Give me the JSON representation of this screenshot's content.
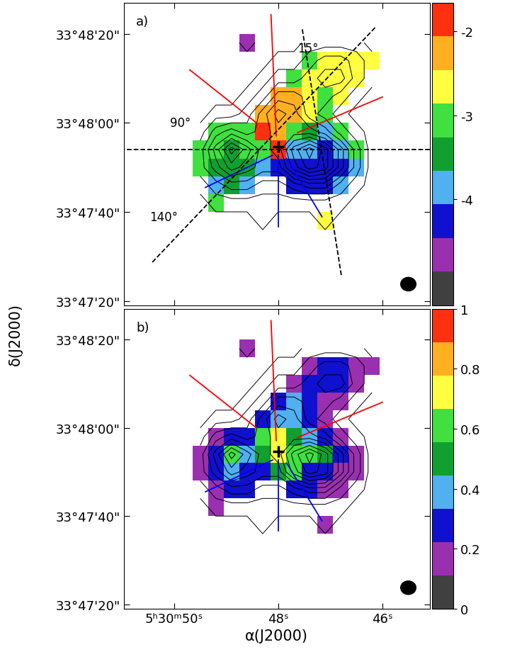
{
  "figure": {
    "ylabel": "δ(J2000)"
  },
  "chart_data": [
    {
      "type": "heatmap",
      "title": "a)",
      "tick_labels": "y",
      "x": [
        49.5,
        49.2,
        48.9,
        48.6,
        48.3,
        48.0,
        47.7,
        47.4,
        47.1,
        46.8,
        46.5,
        46.2
      ],
      "y": [
        34,
        38,
        42,
        46,
        50,
        54,
        58,
        62,
        66,
        70,
        74,
        78
      ],
      "xlim": [
        50.97,
        45.09
      ],
      "xticks": [
        {
          "value": 50,
          "label": "5ʰ30ᵐ50ˢ"
        },
        {
          "value": 48,
          "label": "48ˢ"
        },
        {
          "value": 46,
          "label": "46ˢ"
        }
      ],
      "ylim": [
        19,
        87
      ],
      "yticks": [
        {
          "value": 80,
          "label": "33°48'20\""
        },
        {
          "value": 60,
          "label": "33°48'00\""
        },
        {
          "value": 40,
          "label": "33°47'40\""
        },
        {
          "value": 20,
          "label": "33°47'20\""
        }
      ],
      "colors": [
        "#404040",
        "#9a30b0",
        "#1010d0",
        "#50b0f0",
        "#10a030",
        "#40e040",
        "#ffff40",
        "#ffb020",
        "#ff3010"
      ],
      "colorbar": {
        "range": [
          -5.26,
          -1.66
        ],
        "ticks": [
          -2,
          -3,
          -4
        ]
      },
      "cells": [
        [
          null,
          null,
          null,
          null,
          null,
          null,
          null,
          null,
          null,
          null,
          null,
          null
        ],
        [
          null,
          null,
          null,
          null,
          null,
          null,
          null,
          null,
          -2.6,
          null,
          null,
          null
        ],
        [
          null,
          -3.0,
          null,
          null,
          null,
          null,
          null,
          null,
          null,
          null,
          null,
          null
        ],
        [
          null,
          -3.8,
          -3.6,
          -3.8,
          null,
          null,
          -4.2,
          -4.2,
          -4.2,
          -3.8,
          null,
          null
        ],
        [
          -3.0,
          -3.4,
          -3.4,
          -3.6,
          -3.8,
          -4.2,
          -4.2,
          -4.2,
          -4.2,
          -4.2,
          -3.8,
          null
        ],
        [
          -3.0,
          -3.0,
          -3.4,
          -3.0,
          -3.0,
          -1.9,
          -3.8,
          -3.8,
          -4.2,
          -3.8,
          -3.0,
          null
        ],
        [
          null,
          -3.0,
          -3.0,
          -3.0,
          -1.9,
          -2.3,
          -3.0,
          -3.4,
          -3.8,
          -3.0,
          null,
          null
        ],
        [
          null,
          null,
          null,
          null,
          -2.3,
          -2.3,
          -2.3,
          -2.6,
          -3.0,
          null,
          null,
          null
        ],
        [
          null,
          null,
          null,
          null,
          null,
          -2.3,
          -2.3,
          -2.6,
          -3.0,
          -2.6,
          null,
          null
        ],
        [
          null,
          null,
          null,
          null,
          null,
          null,
          -3.0,
          -2.6,
          -2.6,
          -2.6,
          -2.6,
          null
        ],
        [
          null,
          null,
          null,
          null,
          null,
          null,
          null,
          -3.0,
          -2.6,
          -2.6,
          -2.6,
          -2.6
        ],
        [
          null,
          null,
          null,
          -4.6,
          null,
          null,
          null,
          null,
          null,
          null,
          null,
          null
        ]
      ],
      "intensity": [
        [
          0,
          0,
          0,
          0,
          0,
          0,
          0,
          0,
          0,
          0,
          0,
          0
        ],
        [
          0,
          0,
          0,
          0,
          1,
          0,
          0,
          0,
          1,
          0,
          0,
          0
        ],
        [
          0,
          1,
          1,
          1,
          1,
          1,
          1,
          1,
          1,
          1,
          0,
          0
        ],
        [
          1,
          2,
          3,
          3,
          2,
          2,
          3,
          4,
          4,
          2,
          1,
          0
        ],
        [
          2,
          4,
          6,
          5,
          4,
          4,
          7,
          9,
          8,
          5,
          2,
          0
        ],
        [
          2,
          5,
          8,
          6,
          4,
          5,
          8,
          10,
          8,
          5,
          2,
          0
        ],
        [
          1,
          3,
          4,
          3,
          4,
          5,
          5,
          5,
          4,
          2,
          1,
          0
        ],
        [
          0,
          1,
          1,
          2,
          4,
          6,
          5,
          3,
          2,
          1,
          0,
          0
        ],
        [
          0,
          0,
          0,
          1,
          2,
          4,
          4,
          3,
          3,
          2,
          1,
          0
        ],
        [
          0,
          0,
          0,
          0,
          1,
          2,
          2,
          3,
          4,
          4,
          2,
          1
        ],
        [
          0,
          0,
          0,
          0,
          0,
          1,
          1,
          2,
          3,
          3,
          2,
          1
        ],
        [
          0,
          0,
          0,
          1,
          0,
          0,
          0,
          1,
          1,
          1,
          1,
          0
        ]
      ],
      "contour_levels": [
        0.5,
        1.5,
        2.5,
        3.5,
        4.5,
        5.5,
        6.5,
        7.5,
        8.5,
        9.5
      ],
      "lines": [
        {
          "color": "red",
          "line_style": "solid",
          "points": [
            [
              49.7,
              71.9
            ],
            [
              48.42,
              60.0
            ]
          ]
        },
        {
          "color": "red",
          "line_style": "solid",
          "points": [
            [
              48.14,
              84.3
            ],
            [
              48.04,
              57.1
            ]
          ]
        },
        {
          "color": "red",
          "line_style": "solid",
          "points": [
            [
              46.0,
              65.8
            ],
            [
              47.63,
              57.8
            ]
          ]
        },
        {
          "color": "blue",
          "line_style": "solid",
          "points": [
            [
              49.4,
              45.5
            ],
            [
              48.11,
              52.7
            ]
          ]
        },
        {
          "color": "blue",
          "line_style": "solid",
          "points": [
            [
              48.0,
              52.7
            ],
            [
              48.0,
              36.7
            ]
          ]
        },
        {
          "color": "blue",
          "line_style": "solid",
          "points": [
            [
              47.16,
              38.9
            ],
            [
              47.84,
              52.0
            ]
          ]
        },
        {
          "color": "black",
          "line_style": "dashed",
          "points": [
            [
              51.17,
              54.0
            ],
            [
              45.09,
              54.0
            ]
          ]
        },
        {
          "color": "black",
          "line_style": "dashed",
          "points": [
            [
              46.79,
              25.8
            ],
            [
              47.54,
              81.1
            ]
          ]
        },
        {
          "color": "black",
          "line_style": "dashed",
          "points": [
            [
              50.42,
              28.7
            ],
            [
              46.14,
              81.4
            ]
          ]
        }
      ],
      "markers": [
        {
          "x": 48.0,
          "y": 54.6,
          "marker": "plus"
        }
      ],
      "annotations": [
        {
          "text": "15°",
          "x": 47.43,
          "y": 76.7
        },
        {
          "text": "90°",
          "x": 49.88,
          "y": 60.0
        },
        {
          "text": "140°",
          "x": 50.2,
          "y": 38.9
        }
      ]
    },
    {
      "type": "heatmap",
      "title": "b)",
      "xlabel": "α(J2000)",
      "x": [
        49.5,
        49.2,
        48.9,
        48.6,
        48.3,
        48.0,
        47.7,
        47.4,
        47.1,
        46.8,
        46.5,
        46.2
      ],
      "y": [
        34,
        38,
        42,
        46,
        50,
        54,
        58,
        62,
        66,
        70,
        74,
        78
      ],
      "xlim": [
        50.97,
        45.09
      ],
      "xticks": [
        {
          "value": 50,
          "label": "5ʰ30ᵐ50ˢ"
        },
        {
          "value": 48,
          "label": "48ˢ"
        },
        {
          "value": 46,
          "label": "46ˢ"
        }
      ],
      "ylim": [
        19,
        87
      ],
      "yticks": [
        {
          "value": 80,
          "label": "33°48'20\""
        },
        {
          "value": 60,
          "label": "33°48'00\""
        },
        {
          "value": 40,
          "label": "33°47'40\""
        },
        {
          "value": 20,
          "label": "33°47'20\""
        }
      ],
      "colors": [
        "#404040",
        "#9a30b0",
        "#1010d0",
        "#50b0f0",
        "#10a030",
        "#40e040",
        "#ffff40",
        "#ffb020",
        "#ff3010"
      ],
      "colorbar": {
        "range": [
          0,
          1
        ],
        "ticks": [
          1,
          0.8,
          0.6,
          0.4,
          0.2,
          0
        ]
      },
      "cells": [
        [
          null,
          null,
          null,
          null,
          null,
          null,
          null,
          null,
          null,
          null,
          null,
          null
        ],
        [
          null,
          null,
          null,
          null,
          null,
          null,
          null,
          null,
          0.15,
          null,
          null,
          null
        ],
        [
          null,
          0.15,
          null,
          null,
          null,
          null,
          null,
          null,
          null,
          null,
          null,
          null
        ],
        [
          null,
          0.15,
          0.3,
          0.3,
          null,
          null,
          0.3,
          0.3,
          0.15,
          0.15,
          null,
          null
        ],
        [
          0.15,
          0.3,
          0.4,
          0.3,
          0.3,
          0.5,
          0.6,
          0.3,
          0.3,
          0.15,
          0.15,
          null
        ],
        [
          0.15,
          0.3,
          0.6,
          0.4,
          0.5,
          0.7,
          0.6,
          0.6,
          0.5,
          0.3,
          0.15,
          null
        ],
        [
          null,
          0.15,
          0.3,
          0.3,
          0.6,
          0.7,
          0.5,
          0.4,
          0.3,
          0.15,
          null,
          null
        ],
        [
          null,
          null,
          null,
          null,
          0.3,
          0.4,
          0.4,
          0.3,
          0.15,
          null,
          null,
          null
        ],
        [
          null,
          null,
          null,
          null,
          null,
          0.3,
          0.4,
          0.3,
          0.15,
          0.15,
          null,
          null
        ],
        [
          null,
          null,
          null,
          null,
          null,
          null,
          0.15,
          0.3,
          0.3,
          0.3,
          0.15,
          null
        ],
        [
          null,
          null,
          null,
          null,
          null,
          null,
          null,
          0.15,
          0.3,
          0.3,
          0.15,
          0.15
        ],
        [
          null,
          null,
          null,
          0.15,
          null,
          null,
          null,
          null,
          null,
          null,
          null,
          null
        ]
      ],
      "intensity": [
        [
          0,
          0,
          0,
          0,
          0,
          0,
          0,
          0,
          0,
          0,
          0,
          0
        ],
        [
          0,
          0,
          0,
          0,
          1,
          0,
          0,
          0,
          1,
          0,
          0,
          0
        ],
        [
          0,
          1,
          1,
          1,
          1,
          1,
          1,
          1,
          1,
          1,
          0,
          0
        ],
        [
          1,
          2,
          3,
          3,
          2,
          2,
          3,
          4,
          4,
          2,
          1,
          0
        ],
        [
          2,
          4,
          6,
          5,
          4,
          4,
          7,
          9,
          8,
          5,
          2,
          0
        ],
        [
          2,
          5,
          8,
          6,
          4,
          5,
          8,
          10,
          8,
          5,
          2,
          0
        ],
        [
          1,
          3,
          4,
          3,
          4,
          5,
          5,
          5,
          4,
          2,
          1,
          0
        ],
        [
          0,
          1,
          1,
          2,
          4,
          6,
          5,
          3,
          2,
          1,
          0,
          0
        ],
        [
          0,
          0,
          0,
          1,
          2,
          4,
          4,
          3,
          3,
          2,
          1,
          0
        ],
        [
          0,
          0,
          0,
          0,
          1,
          2,
          2,
          3,
          4,
          4,
          2,
          1
        ],
        [
          0,
          0,
          0,
          0,
          0,
          1,
          1,
          2,
          3,
          3,
          2,
          1
        ],
        [
          0,
          0,
          0,
          1,
          0,
          0,
          0,
          1,
          1,
          1,
          1,
          0
        ]
      ],
      "contour_levels": [
        0.5,
        1.5,
        2.5,
        3.5,
        4.5,
        5.5,
        6.5,
        7.5,
        8.5,
        9.5
      ],
      "lines": [
        {
          "color": "red",
          "line_style": "solid",
          "points": [
            [
              49.7,
              71.9
            ],
            [
              48.42,
              60.0
            ]
          ]
        },
        {
          "color": "red",
          "line_style": "solid",
          "points": [
            [
              48.14,
              84.3
            ],
            [
              48.04,
              57.1
            ]
          ]
        },
        {
          "color": "red",
          "line_style": "solid",
          "points": [
            [
              46.0,
              65.8
            ],
            [
              47.63,
              57.8
            ]
          ]
        },
        {
          "color": "blue",
          "line_style": "solid",
          "points": [
            [
              49.4,
              45.5
            ],
            [
              48.11,
              52.7
            ]
          ]
        },
        {
          "color": "blue",
          "line_style": "solid",
          "points": [
            [
              48.0,
              52.7
            ],
            [
              48.0,
              36.7
            ]
          ]
        },
        {
          "color": "blue",
          "line_style": "solid",
          "points": [
            [
              47.16,
              38.9
            ],
            [
              47.84,
              52.0
            ]
          ]
        }
      ],
      "markers": [
        {
          "x": 48.0,
          "y": 54.6,
          "marker": "plus"
        }
      ]
    }
  ]
}
